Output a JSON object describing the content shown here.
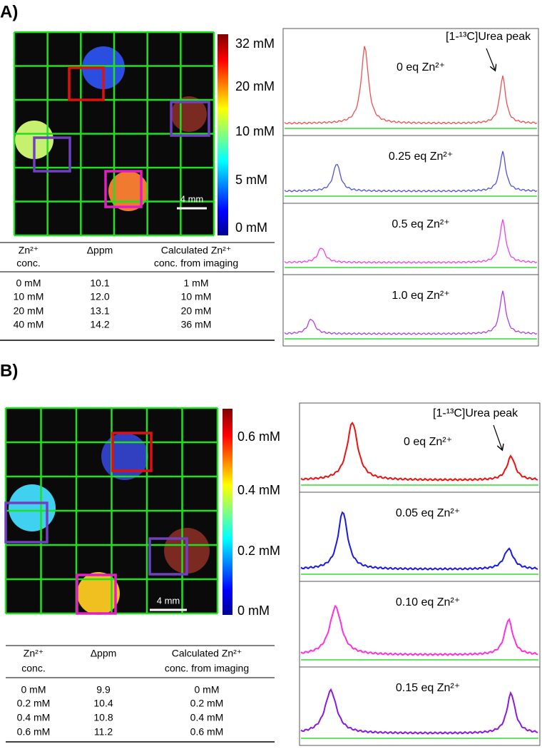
{
  "panels": [
    {
      "label": "A)",
      "scale_bar": "4 mm",
      "colorbar_labels": [
        "32 mM",
        "20 mM",
        "10 mM",
        "5 mM",
        "0 mM"
      ],
      "table": {
        "header": [
          [
            "Zn²⁺",
            "conc."
          ],
          [
            "Δppm"
          ],
          [
            "Calculated Zn²⁺",
            "conc. from imaging"
          ]
        ],
        "rows": [
          [
            "0 mM",
            "10.1",
            "1 mM"
          ],
          [
            "10 mM",
            "12.0",
            "10 mM"
          ],
          [
            "20 mM",
            "13.1",
            "20 mM"
          ],
          [
            "40 mM",
            "14.2",
            "36 mM"
          ]
        ]
      },
      "peak_annotation": "[1-¹³C]Urea peak",
      "spectra": [
        {
          "label": "0 eq Zn²⁺",
          "color": "#f05050"
        },
        {
          "label": "0.25 eq Zn²⁺",
          "color": "#5050e0"
        },
        {
          "label": "0.5 eq Zn²⁺",
          "color": "#f040f0"
        },
        {
          "label": "1.0 eq Zn²⁺",
          "color": "#b040e0"
        }
      ]
    },
    {
      "label": "B)",
      "scale_bar": "4 mm",
      "colorbar_labels": [
        "0.6 mM",
        "0.4 mM",
        "0.2 mM",
        "0 mM"
      ],
      "table": {
        "header": [
          [
            "Zn²⁺",
            "conc."
          ],
          [
            "Δppm"
          ],
          [
            "Calculated Zn²⁺",
            "conc. from imaging"
          ]
        ],
        "rows": [
          [
            "0 mM",
            "9.9",
            "0 mM"
          ],
          [
            "0.2 mM",
            "10.4",
            "0.2 mM"
          ],
          [
            "0.4 mM",
            "10.8",
            "0.4 mM"
          ],
          [
            "0.6 mM",
            "11.2",
            "0.6 mM"
          ]
        ]
      },
      "peak_annotation": "[1-¹³C]Urea peak",
      "spectra": [
        {
          "label": "0 eq Zn²⁺",
          "color": "#ee1111"
        },
        {
          "label": "0.05 eq Zn²⁺",
          "color": "#1a1ae0"
        },
        {
          "label": "0.10 eq Zn²⁺",
          "color": "#ff30e0"
        },
        {
          "label": "0.15 eq Zn²⁺",
          "color": "#8a1ae0"
        }
      ]
    }
  ]
}
